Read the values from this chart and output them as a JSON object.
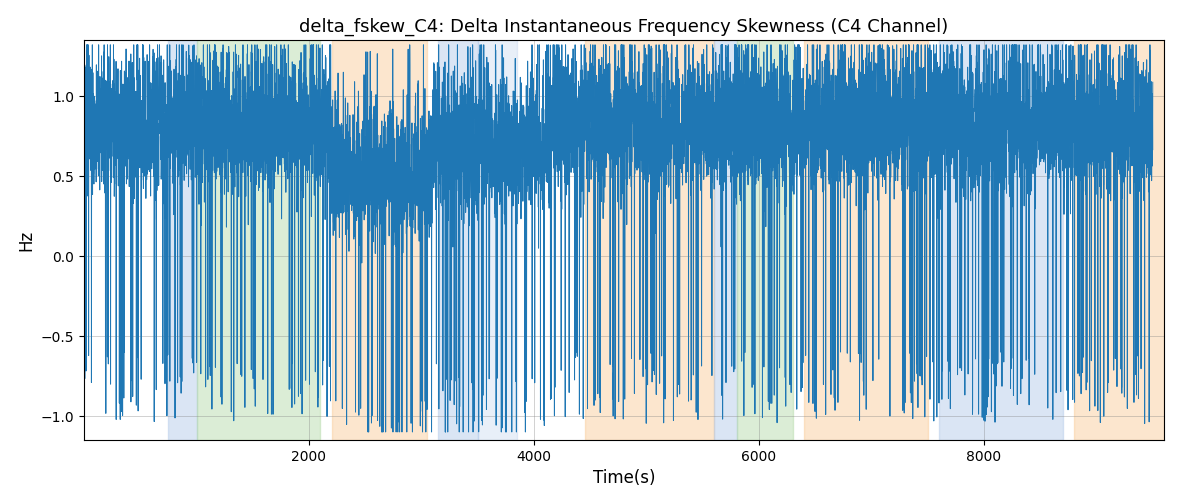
{
  "title": "delta_fskew_C4: Delta Instantaneous Frequency Skewness (C4 Channel)",
  "xlabel": "Time(s)",
  "ylabel": "Hz",
  "ylim": [
    -1.15,
    1.35
  ],
  "xlim": [
    0,
    9600
  ],
  "xticks": [
    2000,
    4000,
    6000,
    8000
  ],
  "yticks": [
    -1.0,
    -0.5,
    0.0,
    0.5,
    1.0
  ],
  "line_color": "#1f77b4",
  "line_width": 0.7,
  "figsize": [
    12.0,
    5.0
  ],
  "dpi": 100,
  "bg_bands": [
    {
      "xmin": 750,
      "xmax": 1000,
      "color": "#aec6e8",
      "alpha": 0.45
    },
    {
      "xmin": 1000,
      "xmax": 2100,
      "color": "#b0d8a4",
      "alpha": 0.45
    },
    {
      "xmin": 2200,
      "xmax": 3050,
      "color": "#f9c993",
      "alpha": 0.45
    },
    {
      "xmin": 3150,
      "xmax": 3500,
      "color": "#aec6e8",
      "alpha": 0.45
    },
    {
      "xmin": 3500,
      "xmax": 3850,
      "color": "#aec6e8",
      "alpha": 0.28
    },
    {
      "xmin": 4450,
      "xmax": 5600,
      "color": "#f9c993",
      "alpha": 0.45
    },
    {
      "xmin": 5600,
      "xmax": 5800,
      "color": "#aec6e8",
      "alpha": 0.45
    },
    {
      "xmin": 5800,
      "xmax": 6300,
      "color": "#b0d8a4",
      "alpha": 0.45
    },
    {
      "xmin": 6400,
      "xmax": 7500,
      "color": "#f9c993",
      "alpha": 0.45
    },
    {
      "xmin": 7600,
      "xmax": 8700,
      "color": "#aec6e8",
      "alpha": 0.45
    },
    {
      "xmin": 8800,
      "xmax": 9600,
      "color": "#f9c993",
      "alpha": 0.45
    }
  ],
  "seed": 42,
  "n_points": 9500,
  "title_fontsize": 13,
  "label_fontsize": 12
}
